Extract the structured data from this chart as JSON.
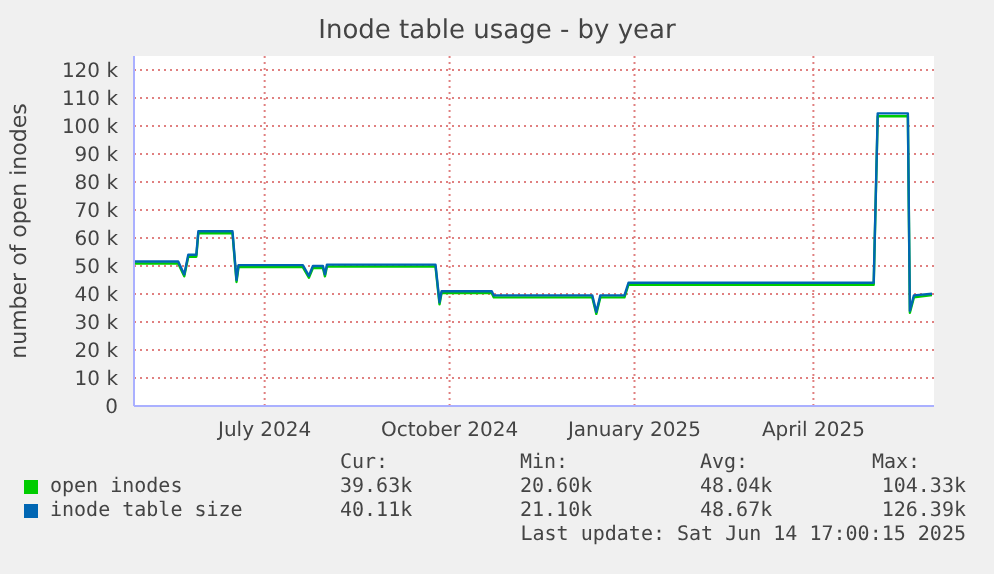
{
  "chart_data": {
    "type": "line",
    "title": "Inode table usage - by year",
    "ylabel": "number of open inodes",
    "x": [
      "2024-05-12",
      "2024-06-03",
      "2024-06-06",
      "2024-06-08",
      "2024-06-12",
      "2024-06-13",
      "2024-06-30",
      "2024-07-02",
      "2024-07-03",
      "2024-08-04",
      "2024-08-07",
      "2024-08-09",
      "2024-08-14",
      "2024-08-15",
      "2024-08-16",
      "2024-10-09",
      "2024-10-11",
      "2024-10-12",
      "2024-11-06",
      "2024-11-07",
      "2024-12-26",
      "2024-12-28",
      "2024-12-30",
      "2025-01-11",
      "2025-01-13",
      "2025-05-15",
      "2025-05-17",
      "2025-06-01",
      "2025-06-02",
      "2025-06-04",
      "2025-06-13"
    ],
    "series": [
      {
        "name": "open inodes",
        "color": "#00cc00",
        "values": [
          50900,
          50900,
          46300,
          53300,
          53300,
          61700,
          61700,
          44300,
          49600,
          49600,
          45800,
          49300,
          49300,
          46300,
          49800,
          49800,
          36300,
          40300,
          40300,
          38800,
          38800,
          32900,
          38800,
          38800,
          43300,
          43300,
          103500,
          103500,
          33300,
          38800,
          39600
        ]
      },
      {
        "name": "inode table size",
        "color": "#0066b3",
        "values": [
          51600,
          51600,
          47000,
          54000,
          54000,
          62400,
          62400,
          45000,
          50300,
          50300,
          46500,
          50000,
          50000,
          47000,
          50500,
          50500,
          37000,
          41000,
          41000,
          39500,
          39500,
          33600,
          39500,
          39500,
          44000,
          44000,
          104500,
          104500,
          34000,
          39500,
          40100
        ]
      }
    ],
    "xlim": [
      "2024-05-12",
      "2025-06-14"
    ],
    "xticks": [
      {
        "value": "2024-07-16",
        "label": "July 2024"
      },
      {
        "value": "2024-10-16",
        "label": "October 2024"
      },
      {
        "value": "2025-01-16",
        "label": "January 2025"
      },
      {
        "value": "2025-04-15",
        "label": "April 2025"
      }
    ],
    "ylim": [
      0,
      125000
    ],
    "yticks": [
      0,
      {
        "value": 10000,
        "label": "10 k"
      },
      {
        "value": 20000,
        "label": "20 k"
      },
      {
        "value": 30000,
        "label": "30 k"
      },
      {
        "value": 40000,
        "label": "40 k"
      },
      {
        "value": 50000,
        "label": "50 k"
      },
      {
        "value": 60000,
        "label": "60 k"
      },
      {
        "value": 70000,
        "label": "70 k"
      },
      {
        "value": 80000,
        "label": "80 k"
      },
      {
        "value": 90000,
        "label": "90 k"
      },
      {
        "value": 100000,
        "label": "100 k"
      },
      {
        "value": 110000,
        "label": "110 k"
      },
      {
        "value": 120000,
        "label": "120 k"
      }
    ],
    "grid": true,
    "legend": "bottom left",
    "marker": "none",
    "line_style": "solid",
    "annotations": [
      "Cur:",
      "Min:",
      "Avg:",
      "Max:",
      "39.63k",
      "20.60k",
      "48.04k",
      "104.33k",
      "40.11k",
      "21.10k",
      "48.67k",
      "126.39k",
      "Last update: Sat Jun 14 17:00:15 2025"
    ]
  }
}
